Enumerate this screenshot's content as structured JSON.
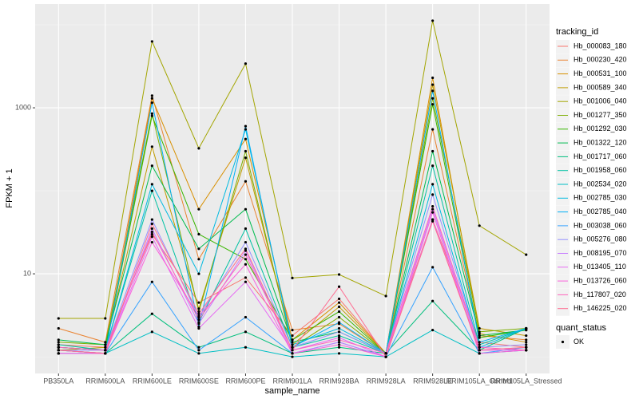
{
  "chart_data": {
    "type": "line",
    "x_label": "sample_name",
    "y_label": "FPKM + 1",
    "categories": [
      "PB350LA",
      "RRIM600LA",
      "RRIM600LE",
      "RRIM600SE",
      "RRIM600PE",
      "RRIM901LA",
      "RRIM928BA",
      "RRIM928LA",
      "RRIM928LE",
      "RRIM105LA_Control",
      "RRIM105LA_Stressed"
    ],
    "log_y": true,
    "ylim": [
      0.63,
      17800
    ],
    "yticks": [
      10,
      1000
    ],
    "minor_yticks": [
      1,
      100,
      10000
    ],
    "grid": true,
    "legend_title": "tracking_id",
    "legend_position": "right",
    "point_legend_title": "quant_status",
    "point_legend_label": "OK",
    "point_color": "#000000",
    "series": [
      {
        "name": "Hb_000083_180",
        "color": "#F8766D",
        "values": [
          1.4,
          1.3,
          30,
          4.5,
          9,
          1.8,
          5,
          1.1,
          45,
          1.5,
          1.3
        ]
      },
      {
        "name": "Hb_000230_420",
        "color": "#EA8331",
        "values": [
          2.2,
          1.5,
          1400,
          15,
          130,
          2.1,
          2.5,
          1.1,
          550,
          1.8,
          1.6
        ]
      },
      {
        "name": "Hb_000531_100",
        "color": "#D89000",
        "values": [
          1.3,
          1.2,
          1300,
          60,
          420,
          1.6,
          4.5,
          1.1,
          2300,
          1.9,
          1.5
        ]
      },
      {
        "name": "Hb_000589_340",
        "color": "#C09B00",
        "values": [
          1.2,
          1.3,
          340,
          3.8,
          250,
          1.4,
          4,
          1.1,
          1900,
          2.2,
          1.8
        ]
      },
      {
        "name": "Hb_001006_040",
        "color": "#A3A500",
        "values": [
          2.9,
          2.9,
          6300,
          325,
          3400,
          8.9,
          9.8,
          5.4,
          11200,
          38,
          17
        ]
      },
      {
        "name": "Hb_001277_350",
        "color": "#7CAE00",
        "values": [
          1.5,
          1.4,
          850,
          3.5,
          300,
          1.3,
          3,
          1.1,
          1300,
          2,
          2.2
        ]
      },
      {
        "name": "Hb_001292_030",
        "color": "#39B600",
        "values": [
          1.3,
          1.2,
          800,
          30,
          15,
          1.6,
          3.5,
          1.1,
          1100,
          1.7,
          2.1
        ]
      },
      {
        "name": "Hb_001322_120",
        "color": "#00BB4E",
        "values": [
          1.6,
          1.4,
          200,
          20,
          60,
          1.5,
          2,
          1.1,
          300,
          1.8,
          2.1
        ]
      },
      {
        "name": "Hb_001717_060",
        "color": "#00BF7D",
        "values": [
          1.2,
          1.1,
          3.3,
          1.3,
          2,
          1.1,
          1.3,
          1.1,
          4.7,
          1.2,
          2.2
        ]
      },
      {
        "name": "Hb_001958_060",
        "color": "#00C1A3",
        "values": [
          1.4,
          1.2,
          100,
          2.6,
          35,
          1.3,
          1.8,
          1.1,
          200,
          1.4,
          2.2
        ]
      },
      {
        "name": "Hb_002534_020",
        "color": "#00BFC4",
        "values": [
          1.1,
          1.1,
          2,
          1.1,
          1.3,
          1.0,
          1.1,
          1.0,
          2.1,
          1.1,
          1.2
        ]
      },
      {
        "name": "Hb_002785_030",
        "color": "#00BAE0",
        "values": [
          1.3,
          1.2,
          120,
          10,
          550,
          1.4,
          2.2,
          1.1,
          120,
          1.3,
          2.2
        ]
      },
      {
        "name": "Hb_002785_040",
        "color": "#00B0F6",
        "values": [
          1.2,
          1.1,
          1150,
          2.3,
          600,
          1.3,
          2.6,
          1.1,
          1600,
          1.5,
          2.2
        ]
      },
      {
        "name": "Hb_003038_060",
        "color": "#35A2FF",
        "values": [
          1.1,
          1.1,
          8,
          1.2,
          3,
          1.1,
          1.5,
          1.0,
          12,
          1.1,
          1.3
        ]
      },
      {
        "name": "Hb_005276_080",
        "color": "#9590FF",
        "values": [
          1.2,
          1.2,
          45,
          3,
          24,
          1.3,
          2,
          1.1,
          90,
          1.3,
          1.4
        ]
      },
      {
        "name": "Hb_008195_070",
        "color": "#C77CFF",
        "values": [
          1.1,
          1.1,
          35,
          2.5,
          19,
          1.1,
          1.5,
          1.0,
          60,
          1.2,
          1.3
        ]
      },
      {
        "name": "Hb_013405_110",
        "color": "#E76BF3",
        "values": [
          1.2,
          1.1,
          28,
          2.2,
          8,
          1.2,
          1.7,
          1.0,
          45,
          1.2,
          1.2
        ]
      },
      {
        "name": "Hb_013726_060",
        "color": "#FA62DB",
        "values": [
          1.1,
          1.1,
          24,
          3.1,
          13,
          1.1,
          1.4,
          1.0,
          55,
          1.1,
          1.2
        ]
      },
      {
        "name": "Hb_117807_020",
        "color": "#FF62BC",
        "values": [
          1.3,
          1.2,
          32,
          2.8,
          17,
          1.2,
          1.6,
          1.1,
          65,
          1.3,
          1.2
        ]
      },
      {
        "name": "Hb_146225_020",
        "color": "#FF6C91",
        "values": [
          1.2,
          1.1,
          40,
          3.3,
          20,
          1.2,
          7,
          1.0,
          43,
          1.2,
          1.3
        ]
      }
    ]
  }
}
